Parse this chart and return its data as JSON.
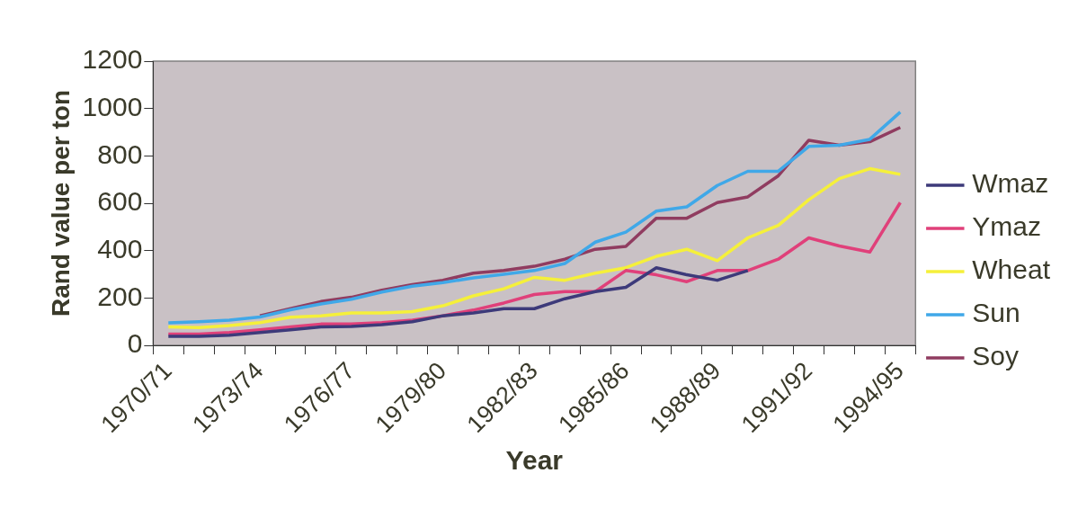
{
  "chart_data": {
    "type": "line",
    "xlabel": "Year",
    "ylabel": "Rand value per ton",
    "categories": [
      "1970/71",
      null,
      null,
      "1973/74",
      null,
      null,
      "1976/77",
      null,
      null,
      "1979/80",
      null,
      null,
      "1982/83",
      null,
      null,
      "1985/86",
      null,
      null,
      "1988/89",
      null,
      null,
      "1991/92",
      null,
      null,
      "1994/95"
    ],
    "series": [
      {
        "name": "Wmaz",
        "color": "#3d3a7a",
        "values": [
          38,
          38,
          43,
          54,
          66,
          78,
          80,
          88,
          100,
          125,
          137,
          155,
          155,
          197,
          227,
          245,
          328,
          298,
          275,
          316,
          null,
          null,
          null,
          null,
          null
        ]
      },
      {
        "name": "Ymaz",
        "color": "#e0407a",
        "values": [
          48,
          48,
          54,
          66,
          78,
          90,
          90,
          96,
          107,
          125,
          149,
          179,
          215,
          227,
          227,
          316,
          298,
          269,
          316,
          316,
          364,
          454,
          420,
          394,
          603
        ]
      },
      {
        "name": "Wheat",
        "color": "#f5f03a",
        "values": [
          78,
          75,
          84,
          96,
          119,
          125,
          137,
          137,
          143,
          167,
          209,
          239,
          287,
          275,
          305,
          328,
          376,
          406,
          358,
          454,
          507,
          615,
          704,
          746,
          722
        ]
      },
      {
        "name": "Sun",
        "color": "#40a8e8",
        "values": [
          95,
          100,
          107,
          120,
          150,
          175,
          195,
          225,
          250,
          265,
          285,
          300,
          316,
          346,
          436,
          478,
          567,
          585,
          675,
          735,
          735,
          840,
          845,
          870,
          985
        ]
      },
      {
        "name": "Soy",
        "color": "#903c60",
        "values": [
          null,
          null,
          null,
          125,
          155,
          185,
          203,
          233,
          257,
          275,
          305,
          316,
          334,
          364,
          406,
          418,
          537,
          537,
          603,
          627,
          716,
          866,
          845,
          860,
          920
        ]
      }
    ],
    "ylim": [
      0,
      1200
    ],
    "yticks": [
      0,
      200,
      400,
      600,
      800,
      1000,
      1200
    ],
    "legend": "right",
    "marker": "none",
    "line_style": "solid"
  }
}
